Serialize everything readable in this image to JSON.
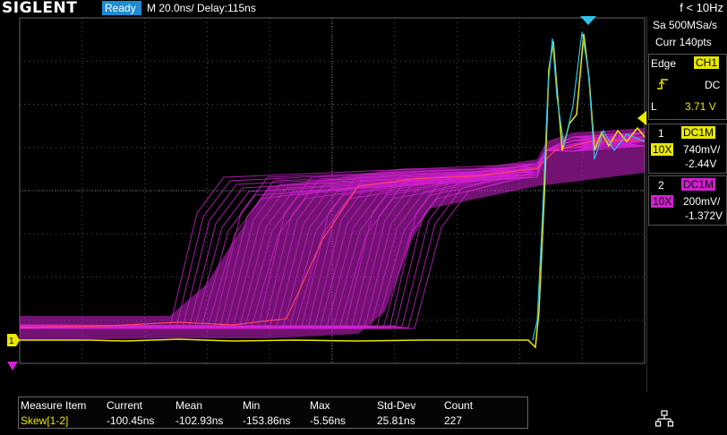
{
  "header": {
    "logo": "SIGLENT",
    "status": "Ready",
    "timebase": "M 20.0ns/  Delay:115ns",
    "frequency": "f < 10Hz"
  },
  "acquisition": {
    "sample_rate": "Sa 500MSa/s",
    "memory": "Curr 140pts"
  },
  "trigger": {
    "type": "Edge",
    "source": "CH1",
    "coupling": "DC",
    "level_prefix": "L",
    "level": "3.71 V"
  },
  "channels": [
    {
      "number": "1",
      "coupling": "DC1M",
      "probe": "10X",
      "scale": "740mV/",
      "offset": "-2.44V",
      "color": "#e8e800"
    },
    {
      "number": "2",
      "coupling": "DC1M",
      "probe": "10X",
      "scale": "200mV/",
      "offset": "-1.372V",
      "color": "#d020d0"
    }
  ],
  "markers": {
    "ch1": "1"
  },
  "measurements": {
    "headers": [
      "Measure Item",
      "Current",
      "Mean",
      "Min",
      "Max",
      "Std-Dev",
      "Count"
    ],
    "row": [
      "Skew[1-2]",
      "-100.45ns",
      "-102.93ns",
      "-153.86ns",
      "-5.56ns",
      "25.81ns",
      "227"
    ]
  },
  "colors": {
    "ch1": "#e8e800",
    "ch2": "#d020d0",
    "math": "#30c0e8",
    "ready_bg": "#1e8cd0"
  },
  "icons": {
    "trigger_edge": "rising-edge-icon",
    "trigger_position": "trigger-position-marker",
    "network": "network-icon"
  }
}
